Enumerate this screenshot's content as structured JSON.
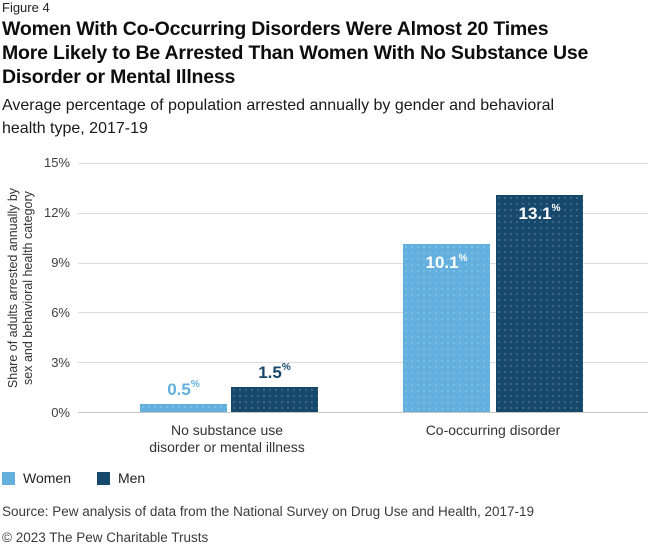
{
  "figure_label": "Figure 4",
  "header": {
    "title_lines": [
      "Women With Co-Occurring Disorders Were Almost 20 Times",
      "More Likely to Be Arrested Than Women With No Substance Use",
      "Disorder or Mental Illness"
    ],
    "subtitle_lines": [
      "Average percentage of population arrested annually by gender and behavioral",
      "health type, 2017-19"
    ]
  },
  "chart_data": {
    "type": "bar",
    "title": "Women With Co-Occurring Disorders Were Almost 20 Times More Likely to Be Arrested Than Women With No Substance Use Disorder or Mental Illness",
    "subtitle": "Average percentage of population arrested annually by gender and behavioral health type, 2017-19",
    "categories": [
      "No substance use disorder or mental illness",
      "Co-occurring disorder"
    ],
    "category_display": [
      {
        "line1": "No substance use",
        "line2": "disorder or mental illness"
      },
      {
        "line1": "Co-occurring disorder",
        "line2": ""
      }
    ],
    "series": [
      {
        "name": "Women",
        "color": "#63B0DF",
        "values": [
          0.5,
          10.1
        ]
      },
      {
        "name": "Men",
        "color": "#16486B",
        "values": [
          1.5,
          13.1
        ]
      }
    ],
    "percent_suffix": "%",
    "ylabel_lines": [
      "Share of adults arrested annually by",
      "sex and behavioral health category"
    ],
    "ylabel": "Share of adults arrested annually by sex and behavioral health category",
    "yticks": [
      "15%",
      "12%",
      "9%",
      "6%",
      "3%",
      "0%"
    ],
    "ylim": [
      0,
      15
    ],
    "grid": true,
    "legend_position": "bottom-left"
  },
  "legend": {
    "items": [
      {
        "label": "Women",
        "color": "#63B0DF"
      },
      {
        "label": "Men",
        "color": "#16486B"
      }
    ]
  },
  "footer": {
    "source": "Source: Pew analysis of data from the National Survey on Drug Use and Health, 2017-19",
    "copyright": "© 2023 The Pew Charitable Trusts"
  }
}
